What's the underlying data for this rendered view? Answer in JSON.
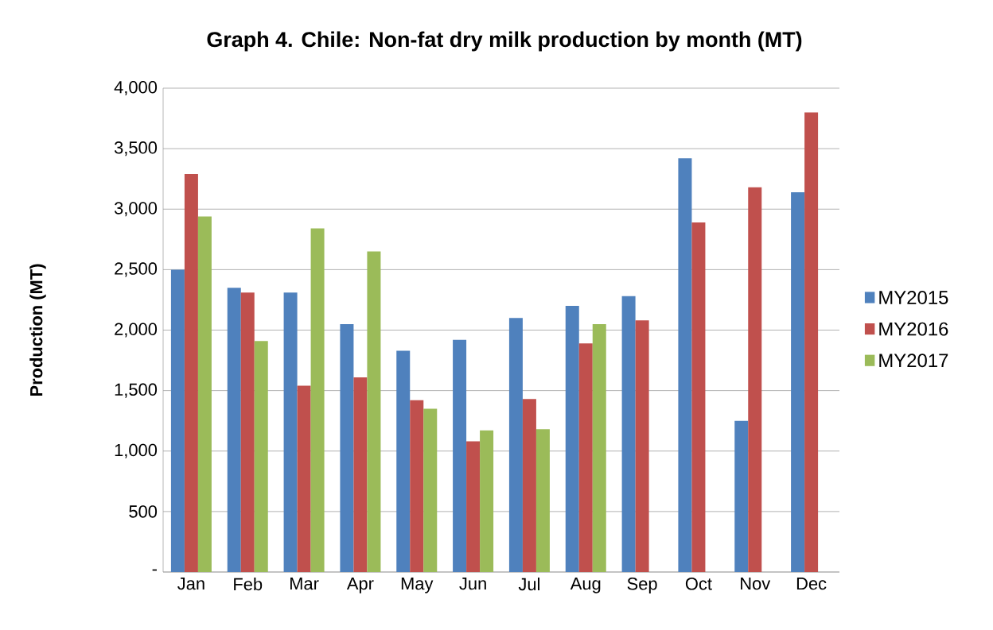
{
  "chart_data": {
    "type": "bar",
    "title": "Graph 4. Chile: Non-fat dry milk production by month (MT)",
    "ylabel": "Production (MT)",
    "categories": [
      "Jan",
      "Feb",
      "Mar",
      "Apr",
      "May",
      "Jun",
      "Jul",
      "Aug",
      "Sep",
      "Oct",
      "Nov",
      "Dec"
    ],
    "series": [
      {
        "name": "MY2015",
        "color": "#4f81bd",
        "values": [
          2500,
          2350,
          2310,
          2050,
          1830,
          1920,
          2100,
          2200,
          2280,
          3420,
          1250,
          3140
        ]
      },
      {
        "name": "MY2016",
        "color": "#c0504d",
        "values": [
          3290,
          2310,
          1540,
          1610,
          1420,
          1080,
          1430,
          1890,
          2080,
          2890,
          3180,
          3800
        ]
      },
      {
        "name": "MY2017",
        "color": "#9bbb59",
        "values": [
          2940,
          1910,
          2840,
          2650,
          1350,
          1170,
          1180,
          2050,
          null,
          null,
          null,
          null
        ]
      }
    ],
    "ylim": [
      0,
      4000
    ],
    "yticks": [
      {
        "value": 0,
        "label": "-"
      },
      {
        "value": 500,
        "label": "500"
      },
      {
        "value": 1000,
        "label": "1,000"
      },
      {
        "value": 1500,
        "label": "1,500"
      },
      {
        "value": 2000,
        "label": "2,000"
      },
      {
        "value": 2500,
        "label": "2,500"
      },
      {
        "value": 3000,
        "label": "3,000"
      },
      {
        "value": 3500,
        "label": "3,500"
      },
      {
        "value": 4000,
        "label": "4,000"
      }
    ],
    "grid": "y",
    "legend": "right"
  }
}
